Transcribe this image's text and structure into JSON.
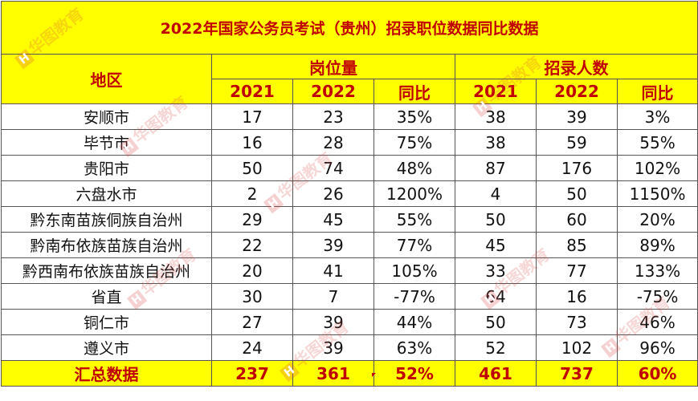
{
  "title": "2022年国家公务员考试（贵州）招录职位数据同比数据",
  "header": {
    "region": "地区",
    "positions_group": "岗位量",
    "recruits_group": "招录人数",
    "year_2021": "2021",
    "year_2022": "2022",
    "ratio": "同比"
  },
  "rows": [
    {
      "region": "安顺市",
      "p2021": "17",
      "p2022": "23",
      "pratio": "35%",
      "r2021": "38",
      "r2022": "39",
      "rratio": "3%"
    },
    {
      "region": "毕节市",
      "p2021": "16",
      "p2022": "28",
      "pratio": "75%",
      "r2021": "38",
      "r2022": "59",
      "rratio": "55%"
    },
    {
      "region": "贵阳市",
      "p2021": "50",
      "p2022": "74",
      "pratio": "48%",
      "r2021": "87",
      "r2022": "176",
      "rratio": "102%"
    },
    {
      "region": "六盘水市",
      "p2021": "2",
      "p2022": "26",
      "pratio": "1200%",
      "r2021": "4",
      "r2022": "50",
      "rratio": "1150%"
    },
    {
      "region": "黔东南苗族侗族自治州",
      "p2021": "29",
      "p2022": "45",
      "pratio": "55%",
      "r2021": "50",
      "r2022": "60",
      "rratio": "20%"
    },
    {
      "region": "黔南布依族苗族自治州",
      "p2021": "22",
      "p2022": "39",
      "pratio": "77%",
      "r2021": "45",
      "r2022": "85",
      "rratio": "89%"
    },
    {
      "region": "黔西南布依族苗族自治州",
      "p2021": "20",
      "p2022": "41",
      "pratio": "105%",
      "r2021": "33",
      "r2022": "77",
      "rratio": "133%"
    },
    {
      "region": "省直",
      "p2021": "30",
      "p2022": "7",
      "pratio": "-77%",
      "r2021": "64",
      "r2022": "16",
      "rratio": "-75%"
    },
    {
      "region": "铜仁市",
      "p2021": "27",
      "p2022": "39",
      "pratio": "44%",
      "r2021": "50",
      "r2022": "73",
      "rratio": "46%"
    },
    {
      "region": "遵义市",
      "p2021": "24",
      "p2022": "39",
      "pratio": "63%",
      "r2021": "52",
      "r2022": "102",
      "rratio": "96%"
    }
  ],
  "total": {
    "region": "汇总数据",
    "p2021": "237",
    "p2022": "361",
    "pratio": "52%",
    "r2021": "461",
    "r2022": "737",
    "rratio": "60%"
  },
  "watermark": {
    "text": "华图教育",
    "icon": "huatu-logo-icon"
  },
  "colors": {
    "header_bg": "#ffff00",
    "header_text": "#c00000",
    "grid": "#555555"
  }
}
